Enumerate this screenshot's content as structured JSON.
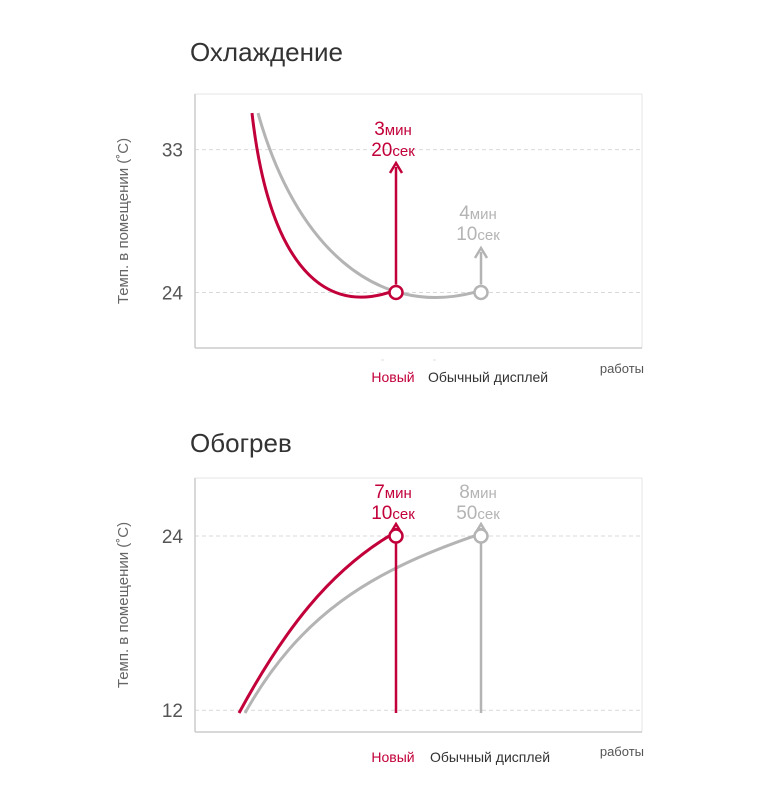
{
  "colors": {
    "new": "#c2003a",
    "old": "#b4b4b4",
    "axis": "#cccccc",
    "grid": "#d9d9d9",
    "text": "#555555",
    "title": "#333333"
  },
  "chart_data": [
    {
      "type": "line",
      "title": "Охлаждение",
      "ylabel": "Темп. в помещении (˚C)",
      "xlabel": "работы",
      "yticks": [
        33,
        24
      ],
      "ylim": [
        20.5,
        36.5
      ],
      "legend": {
        "new": "Новый",
        "old": "Обычный дисплей"
      },
      "series": [
        {
          "name": "Новый",
          "start": 35.3,
          "end": 24,
          "time_label": {
            "min": "3",
            "min_unit": "мин",
            "sec": "20",
            "sec_unit": "сек"
          }
        },
        {
          "name": "Обычный дисплей",
          "start": 35.3,
          "end": 24,
          "time_label": {
            "min": "4",
            "min_unit": "мин",
            "sec": "10",
            "sec_unit": "сек"
          }
        }
      ]
    },
    {
      "type": "line",
      "title": "Обогрев",
      "ylabel": "Темп. в помещении (˚C)",
      "xlabel": "работы",
      "yticks": [
        24,
        12
      ],
      "ylim": [
        10.5,
        28
      ],
      "legend": {
        "new": "Новый",
        "old": "Обычный дисплей"
      },
      "series": [
        {
          "name": "Новый",
          "start": 12,
          "end": 24,
          "time_label": {
            "min": "7",
            "min_unit": "мин",
            "sec": "10",
            "sec_unit": "сек"
          }
        },
        {
          "name": "Обычный дисплей",
          "start": 12,
          "end": 24,
          "time_label": {
            "min": "8",
            "min_unit": "мин",
            "sec": "50",
            "sec_unit": "сек"
          }
        }
      ]
    }
  ]
}
